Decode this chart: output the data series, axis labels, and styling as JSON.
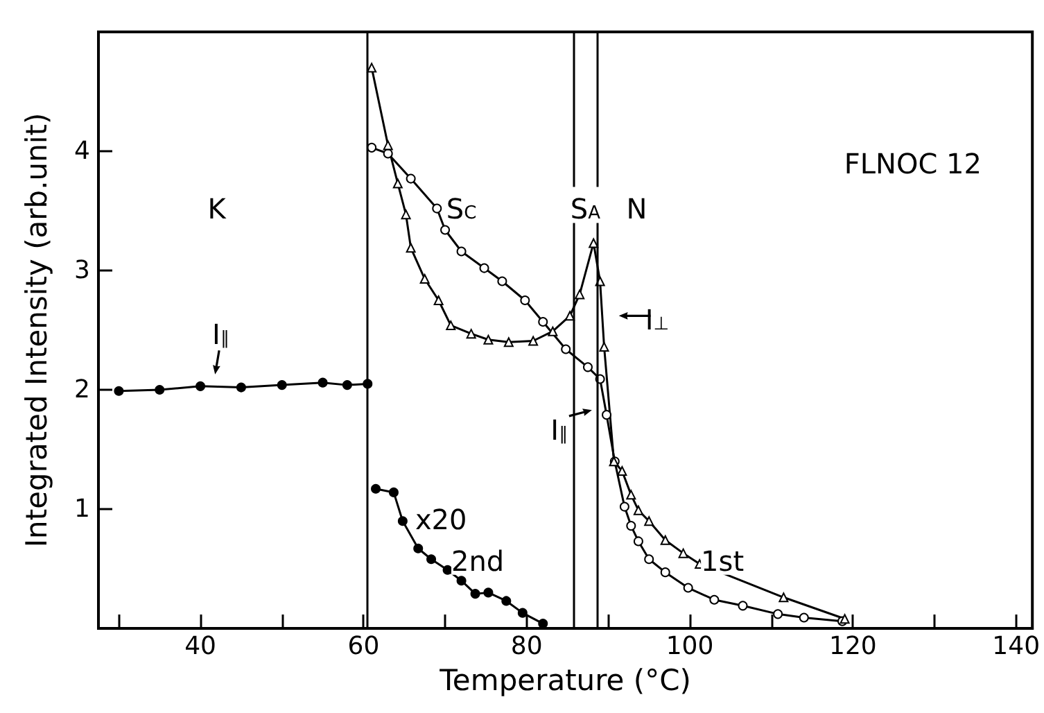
{
  "chart_data": {
    "type": "line",
    "title": "FLNOC 12",
    "xlabel": "Temperature (°C)",
    "ylabel": "Integrated Intensity (arb.unit)",
    "xlim": [
      27.5,
      142
    ],
    "xticks": [
      {
        "value": 30,
        "label": null
      },
      40,
      {
        "value": 50,
        "label": null
      },
      60,
      {
        "value": 70,
        "label": null
      },
      80,
      {
        "value": 90,
        "label": null
      },
      100,
      {
        "value": 110,
        "label": null
      },
      120,
      {
        "value": 130,
        "label": null
      },
      140
    ],
    "ylim": [
      0,
      5
    ],
    "yticks": [
      1,
      2,
      3,
      4
    ],
    "series": [
      {
        "color": "#000000",
        "marker": "circle",
        "x": [
          30,
          35,
          40,
          45,
          50,
          55,
          58,
          60.5
        ],
        "values": [
          1.99,
          2.0,
          2.03,
          2.02,
          2.04,
          2.06,
          2.04,
          2.05
        ]
      },
      {
        "color": "#000000",
        "marker": "circle",
        "x": [
          61,
          63,
          65.8,
          69,
          70,
          72,
          74.8,
          77,
          79.8,
          82,
          84.8,
          87.5,
          89,
          89.8,
          90.8,
          92,
          92.8,
          93.7,
          95,
          97,
          99.8,
          103,
          106.5,
          110.8,
          114,
          118.7
        ],
        "values": [
          4.03,
          3.98,
          3.77,
          3.52,
          3.34,
          3.16,
          3.02,
          2.91,
          2.75,
          2.57,
          2.34,
          2.19,
          2.09,
          1.79,
          1.4,
          1.02,
          0.86,
          0.73,
          0.58,
          0.47,
          0.34,
          0.24,
          0.19,
          0.12,
          0.09,
          0.06
        ]
      },
      {
        "color": "#000000",
        "marker": "triangle",
        "x": [
          61,
          63,
          64.2,
          65.2,
          65.8,
          67.5,
          69.2,
          70.7,
          73.2,
          75.3,
          77.8,
          80.8,
          83.2,
          85.3,
          86.5,
          88.2,
          89,
          89.5,
          90.7,
          91.7,
          92.8,
          93.7,
          95,
          97,
          99.2,
          101.2,
          111.5,
          119
        ],
        "values": [
          4.7,
          4.05,
          3.73,
          3.47,
          3.19,
          2.93,
          2.75,
          2.54,
          2.47,
          2.42,
          2.4,
          2.41,
          2.49,
          2.62,
          2.8,
          3.23,
          2.91,
          2.36,
          1.4,
          1.32,
          1.12,
          0.99,
          0.9,
          0.74,
          0.63,
          0.54,
          0.26,
          0.08
        ]
      },
      {
        "color": "#000000",
        "marker": "circle",
        "x": [
          61.5,
          63.7,
          64.8,
          66.7,
          68.3,
          70.3,
          72,
          73.7,
          75.3,
          77.5,
          79.5,
          82
        ],
        "values": [
          1.17,
          1.14,
          0.9,
          0.67,
          0.58,
          0.49,
          0.4,
          0.29,
          0.3,
          0.23,
          0.13,
          0.04
        ]
      }
    ],
    "ref_lines": [
      {
        "axis": "x",
        "value": 60.5,
        "color": "#000000"
      },
      {
        "axis": "x",
        "value": 85.7,
        "color": "#000000"
      },
      {
        "axis": "x",
        "value": 88.7,
        "color": "#000000"
      }
    ],
    "annotations": [
      "K",
      "S$_{C}$",
      "S$_{A}$",
      "N",
      "I$_{∥}$",
      "I$_{⊥}$",
      "I$_{∥}$",
      "x20",
      "2nd",
      "1st"
    ]
  }
}
